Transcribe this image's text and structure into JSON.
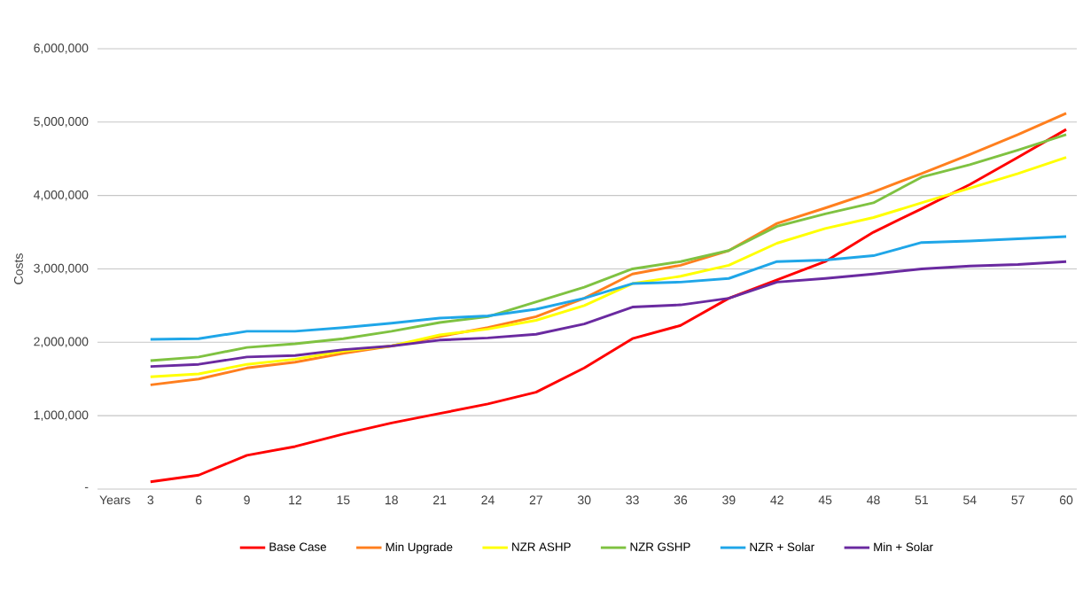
{
  "chart_data": {
    "type": "line",
    "xlabel": "Years",
    "ylabel": "Costs",
    "categories": [
      "3",
      "6",
      "9",
      "12",
      "15",
      "18",
      "21",
      "24",
      "27",
      "30",
      "33",
      "36",
      "39",
      "42",
      "45",
      "48",
      "51",
      "54",
      "57",
      "60"
    ],
    "ylim": [
      0,
      6000000
    ],
    "yticks": [
      {
        "value": 0,
        "label": "-"
      },
      {
        "value": 1000000,
        "label": "1,000,000"
      },
      {
        "value": 2000000,
        "label": "2,000,000"
      },
      {
        "value": 3000000,
        "label": "3,000,000"
      },
      {
        "value": 4000000,
        "label": "4,000,000"
      },
      {
        "value": 5000000,
        "label": "5,000,000"
      },
      {
        "value": 6000000,
        "label": "6,000,000"
      }
    ],
    "grid": "y",
    "legend": "bottom",
    "line_style": "solid",
    "series": [
      {
        "name": "Base Case",
        "color": "#ff0000",
        "values": [
          100000,
          190000,
          460000,
          580000,
          750000,
          900000,
          1030000,
          1160000,
          1320000,
          1650000,
          2050000,
          2230000,
          2600000,
          2850000,
          3100000,
          3500000,
          3820000,
          4150000,
          4520000,
          4900000
        ]
      },
      {
        "name": "Min Upgrade",
        "color": "#ff7f1e",
        "values": [
          1420000,
          1500000,
          1650000,
          1730000,
          1850000,
          1950000,
          2080000,
          2200000,
          2350000,
          2600000,
          2930000,
          3050000,
          3250000,
          3620000,
          3830000,
          4050000,
          4300000,
          4560000,
          4830000,
          5120000
        ]
      },
      {
        "name": "NZR ASHP",
        "color": "#ffff00",
        "values": [
          1530000,
          1570000,
          1700000,
          1770000,
          1880000,
          1950000,
          2100000,
          2180000,
          2300000,
          2500000,
          2800000,
          2900000,
          3050000,
          3350000,
          3550000,
          3700000,
          3900000,
          4100000,
          4300000,
          4520000
        ]
      },
      {
        "name": "NZR GSHP",
        "color": "#7fc241",
        "values": [
          1750000,
          1800000,
          1930000,
          1980000,
          2050000,
          2150000,
          2270000,
          2350000,
          2550000,
          2750000,
          3000000,
          3100000,
          3250000,
          3580000,
          3750000,
          3900000,
          4250000,
          4420000,
          4620000,
          4830000
        ]
      },
      {
        "name": "NZR + Solar",
        "color": "#1fa6e8",
        "values": [
          2040000,
          2050000,
          2150000,
          2150000,
          2200000,
          2260000,
          2330000,
          2360000,
          2450000,
          2600000,
          2800000,
          2820000,
          2870000,
          3100000,
          3120000,
          3180000,
          3360000,
          3380000,
          3410000,
          3440000
        ]
      },
      {
        "name": "Min + Solar",
        "color": "#6a2aa0",
        "values": [
          1670000,
          1700000,
          1800000,
          1820000,
          1900000,
          1950000,
          2030000,
          2060000,
          2110000,
          2250000,
          2480000,
          2510000,
          2600000,
          2820000,
          2870000,
          2930000,
          3000000,
          3040000,
          3060000,
          3100000
        ]
      }
    ]
  }
}
